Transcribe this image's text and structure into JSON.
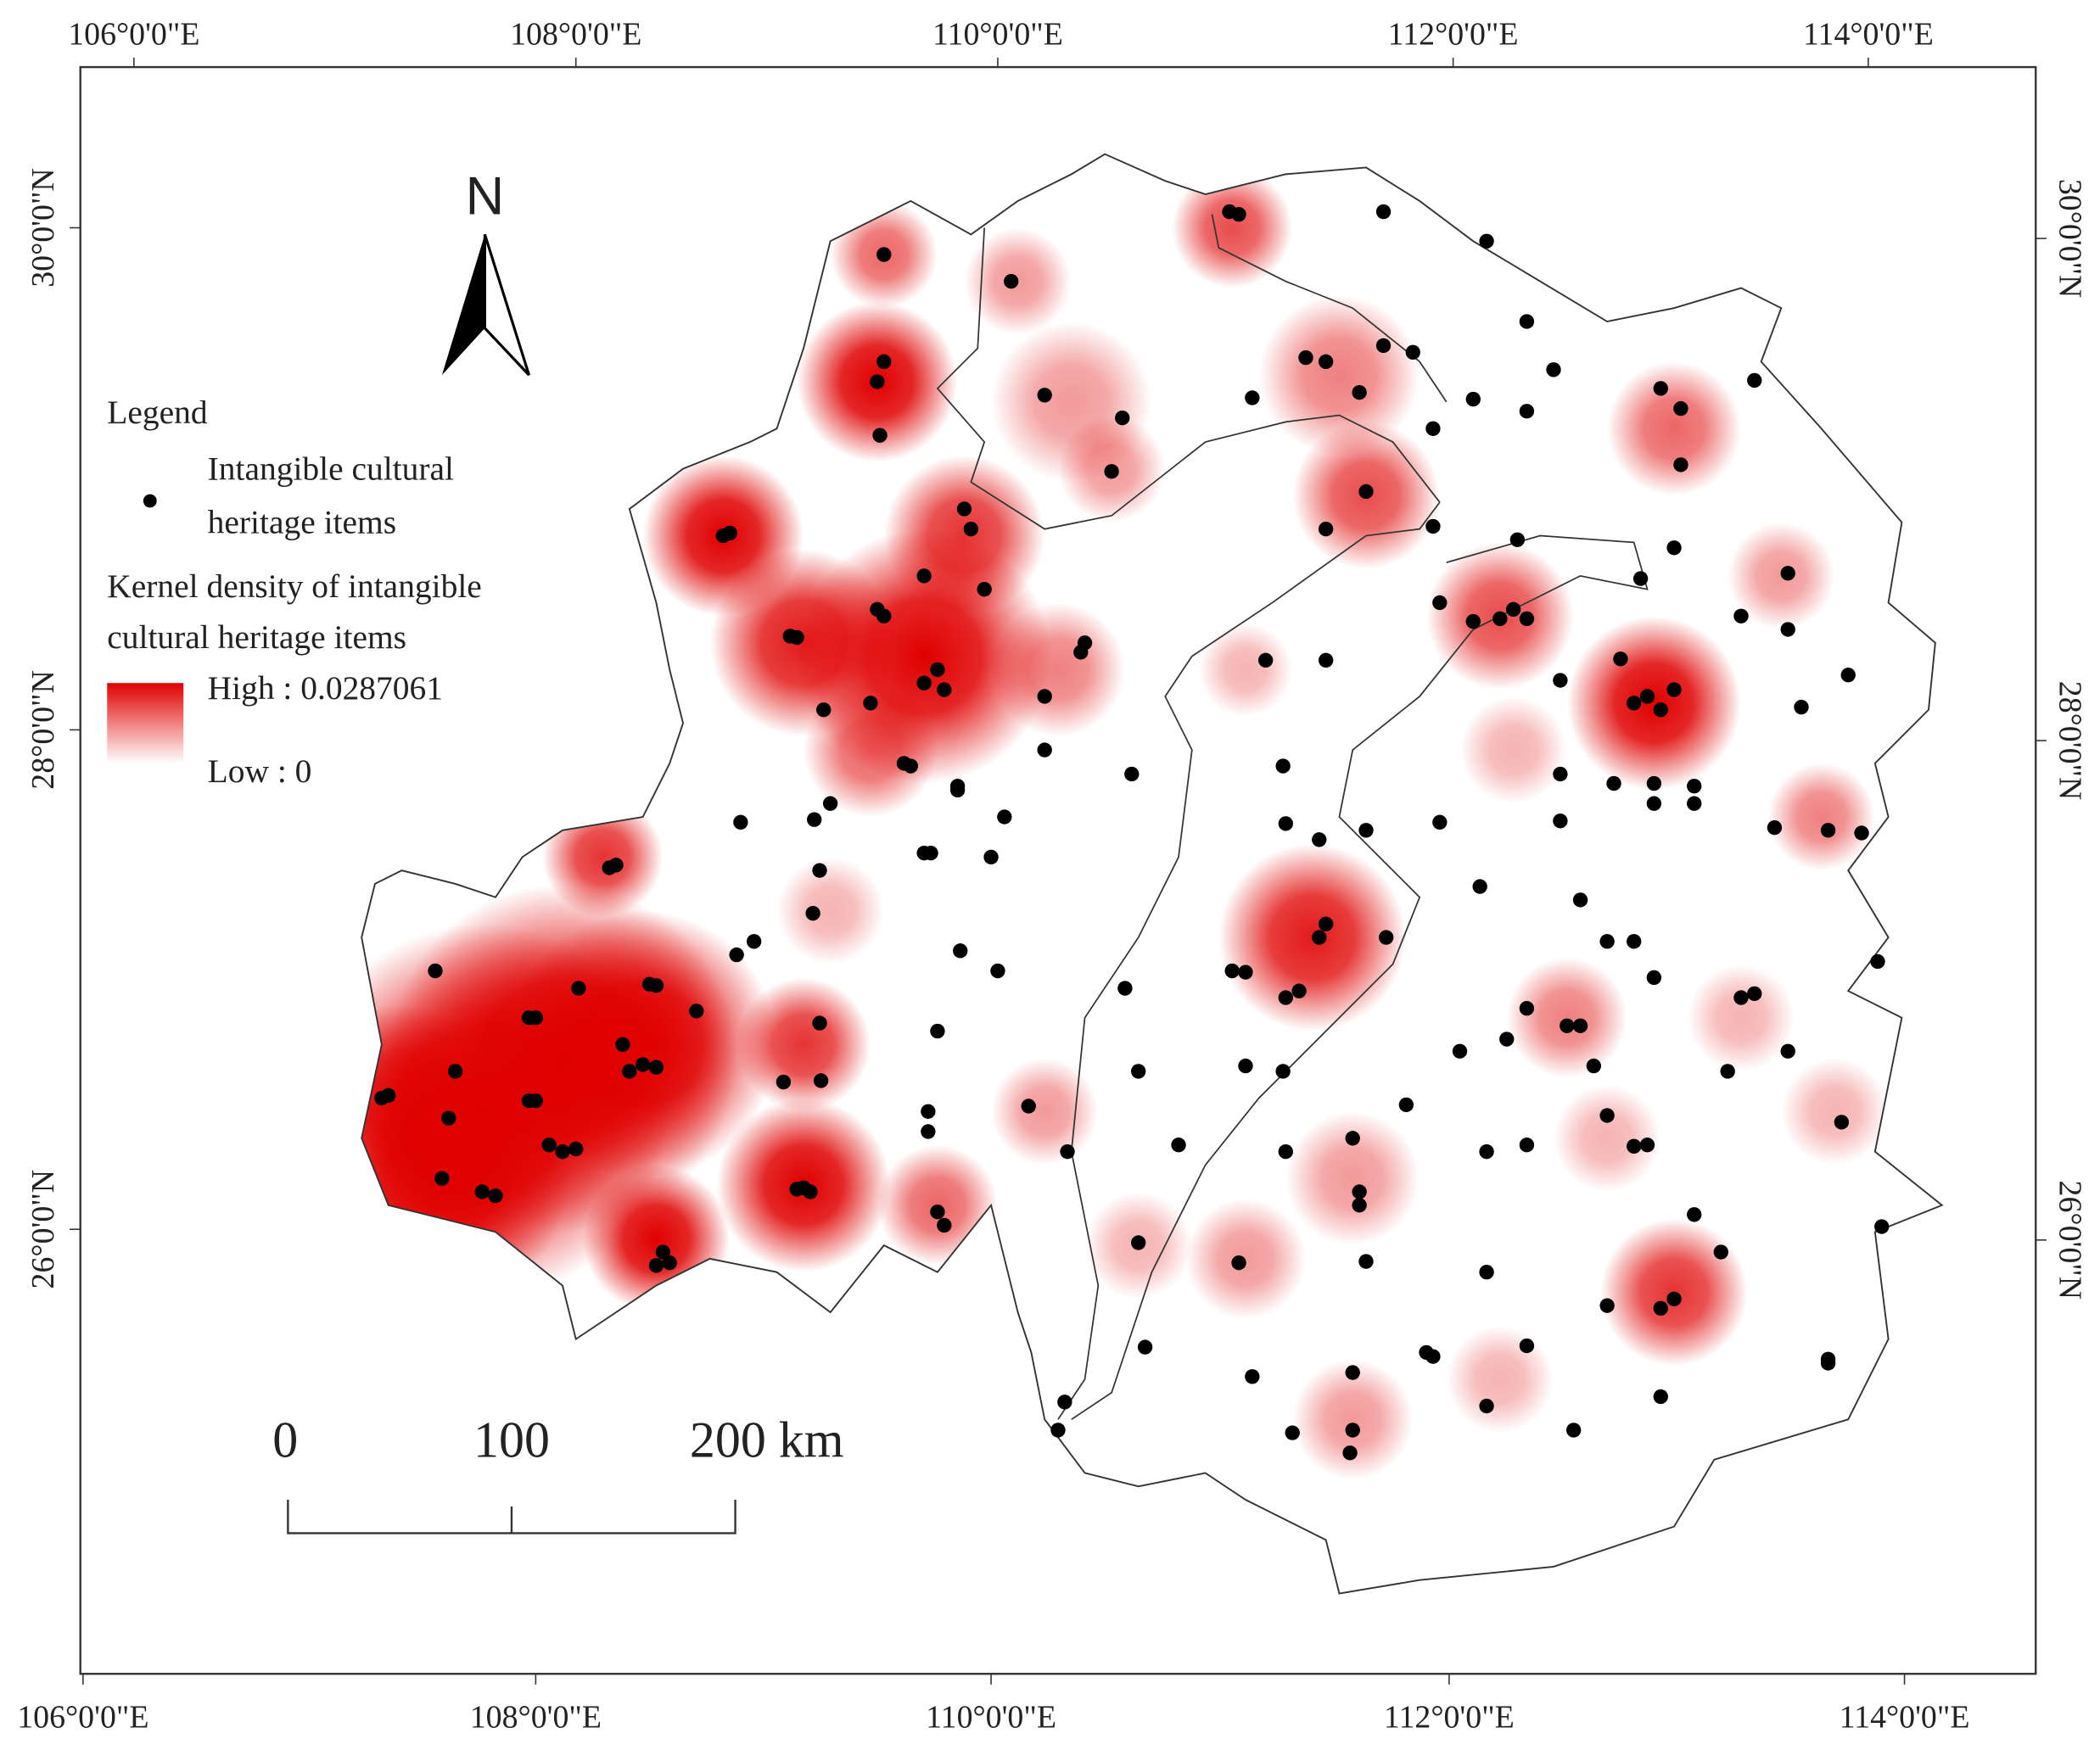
{
  "map": {
    "top_axis_labels": [
      "106°0'0\"E",
      "108°0'0\"E",
      "110°0'0\"E",
      "112°0'0\"E",
      "114°0'0\"E"
    ],
    "bottom_axis_labels": [
      "106°0'0\"E",
      "108°0'0\"E",
      "110°0'0\"E",
      "112°0'0\"E",
      "114°0'0\"E"
    ],
    "left_axis_labels": [
      "30°0'0\"N",
      "28°0'0\"N",
      "26°0'0\"N"
    ],
    "right_axis_labels": [
      "30°0'0\"N",
      "28°0'0\"N",
      "26°0'0\"N"
    ],
    "north_label": "N",
    "legend": {
      "title": "Legend",
      "point_label": [
        "Intangible cultural",
        "heritage items"
      ],
      "density_label": [
        "Kernel density of intangible",
        "cultural heritage items"
      ],
      "high": "High : 0.0287061",
      "low": "Low : 0"
    },
    "scale_bar": [
      "0",
      "100",
      "200 km"
    ]
  }
}
